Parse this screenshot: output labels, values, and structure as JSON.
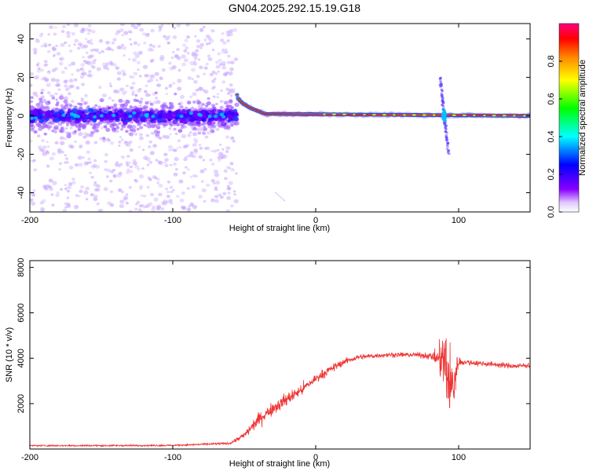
{
  "title": "GN04.2025.292.15.19.G18",
  "colorbar": {
    "label": "Normalized spectral amplitude",
    "ticks": [
      "0.0",
      "0.2",
      "0.4",
      "0.6",
      "0.8"
    ],
    "tick_values": [
      0.0,
      0.2,
      0.4,
      0.6,
      0.8
    ],
    "range": [
      0,
      1
    ]
  },
  "chart_data": [
    {
      "type": "heatmap",
      "xlabel": "Height of straight line (km)",
      "ylabel": "Frequency (Hz)",
      "xlim": [
        -200,
        150
      ],
      "ylim": [
        -50,
        48
      ],
      "xticks": [
        "-200",
        "-100",
        "0",
        "100"
      ],
      "xtick_values": [
        -200,
        -100,
        0,
        100
      ],
      "yticks": [
        "-40",
        "-20",
        "0",
        "20",
        "40"
      ],
      "ytick_values": [
        -40,
        -20,
        0,
        20,
        40
      ],
      "colormap": "rainbow",
      "features": {
        "noise_region_x": [
          -200,
          -55
        ],
        "noise_band_center_hz": 0,
        "tone_start": {
          "x": -55,
          "freq": 11
        },
        "tone_settle": {
          "x": -35,
          "freq": 1
        },
        "tone_end": {
          "x": 150,
          "freq": 0
        },
        "spike_x": 90,
        "spike_freq_range": [
          -20,
          20
        ]
      }
    },
    {
      "type": "line",
      "xlabel": "Height of straight line (km)",
      "ylabel": "SNR (10 * v/v)",
      "xlim": [
        -200,
        150
      ],
      "ylim": [
        0,
        8300
      ],
      "xticks": [
        "-200",
        "-100",
        "0",
        "100"
      ],
      "xtick_values": [
        -200,
        -100,
        0,
        100
      ],
      "yticks": [
        "2000",
        "4000",
        "6000",
        "8000"
      ],
      "ytick_values": [
        2000,
        4000,
        6000,
        8000
      ],
      "color": "#ee3333",
      "x": [
        -200,
        -150,
        -100,
        -60,
        -50,
        -40,
        -30,
        -20,
        -10,
        0,
        10,
        20,
        30,
        40,
        50,
        60,
        70,
        80,
        85,
        90,
        95,
        100,
        110,
        120,
        130,
        140,
        150
      ],
      "y": [
        150,
        150,
        160,
        250,
        600,
        1300,
        1800,
        2200,
        2600,
        3100,
        3500,
        3850,
        4050,
        4100,
        4150,
        4150,
        4150,
        4100,
        4000,
        3900,
        2500,
        3850,
        3800,
        3750,
        3700,
        3650,
        3700
      ],
      "noise_amplitude": [
        60,
        60,
        60,
        80,
        250,
        500,
        500,
        500,
        450,
        350,
        300,
        250,
        200,
        180,
        180,
        180,
        180,
        250,
        600,
        2500,
        3500,
        300,
        200,
        200,
        200,
        200,
        200
      ]
    }
  ]
}
